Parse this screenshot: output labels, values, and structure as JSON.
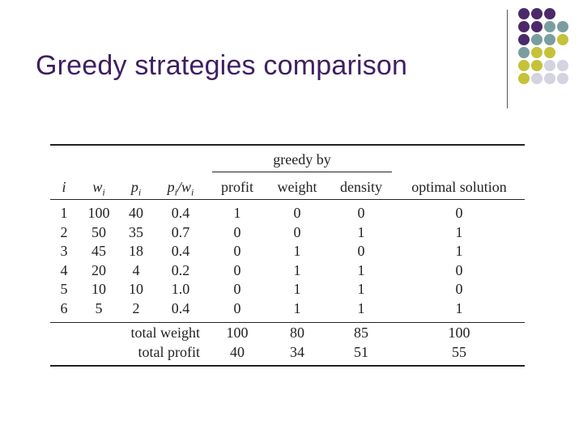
{
  "slide": {
    "title": "Greedy strategies comparison"
  },
  "decoration": {
    "colors": {
      "purple": "#4a2a6b",
      "teal": "#7a9ea0",
      "olive": "#c5c23a",
      "lavender": "#d3d3e2",
      "title": "#3f1f63"
    }
  },
  "table": {
    "group_header": "greedy by",
    "headers": [
      "i",
      "wi",
      "pi",
      "pi/wi",
      "profit",
      "weight",
      "density",
      "optimal solution"
    ],
    "rows": [
      [
        "1",
        "100",
        "40",
        "0.4",
        "1",
        "0",
        "0",
        "0"
      ],
      [
        "2",
        "50",
        "35",
        "0.7",
        "0",
        "0",
        "1",
        "1"
      ],
      [
        "3",
        "45",
        "18",
        "0.4",
        "0",
        "1",
        "0",
        "1"
      ],
      [
        "4",
        "20",
        "4",
        "0.2",
        "0",
        "1",
        "1",
        "0"
      ],
      [
        "5",
        "10",
        "10",
        "1.0",
        "0",
        "1",
        "1",
        "0"
      ],
      [
        "6",
        "5",
        "2",
        "0.4",
        "0",
        "1",
        "1",
        "1"
      ]
    ],
    "totals": [
      {
        "label": "total weight",
        "values": [
          "100",
          "80",
          "85",
          "100"
        ]
      },
      {
        "label": "total profit",
        "values": [
          "40",
          "34",
          "51",
          "55"
        ]
      }
    ]
  }
}
